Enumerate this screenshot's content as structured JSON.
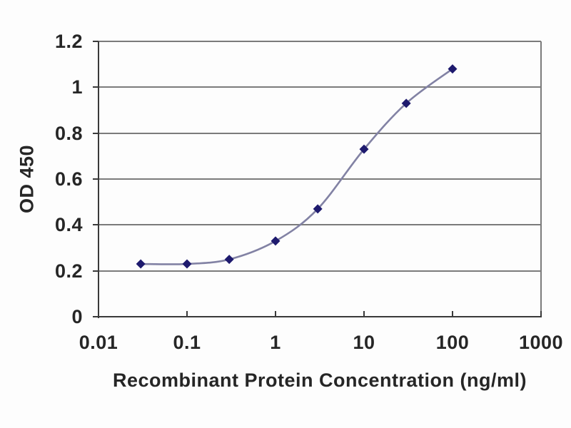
{
  "chart_data": {
    "type": "line",
    "title": "",
    "xlabel": "Recombinant Protein Concentration (ng/ml)",
    "ylabel": "OD 450",
    "x_scale": "log",
    "xlim": [
      0.01,
      1000
    ],
    "ylim": [
      0,
      1.2
    ],
    "x_ticks": [
      0.01,
      0.1,
      1,
      10,
      100,
      1000
    ],
    "x_tick_labels": [
      "0.01",
      "0.1",
      "1",
      "10",
      "100",
      "1000"
    ],
    "y_ticks": [
      0,
      0.2,
      0.4,
      0.6,
      0.8,
      1,
      1.2
    ],
    "y_tick_labels": [
      "0",
      "0.2",
      "0.4",
      "0.6",
      "0.8",
      "1",
      "1.2"
    ],
    "grid": "horizontal-only",
    "legend": "none",
    "series": [
      {
        "name": "OD 450",
        "x": [
          0.03,
          0.1,
          0.3,
          1,
          3,
          10,
          30,
          100
        ],
        "y": [
          0.23,
          0.23,
          0.25,
          0.33,
          0.47,
          0.73,
          0.93,
          1.08
        ],
        "marker": "diamond",
        "line_style": "smooth"
      }
    ]
  },
  "colors": {
    "background": "#fdfdfd",
    "gridline": "#7b7b7b",
    "axis": "#3a3a3a",
    "text": "#262626",
    "line": "#8282a4",
    "marker": "#1e1a6e"
  }
}
